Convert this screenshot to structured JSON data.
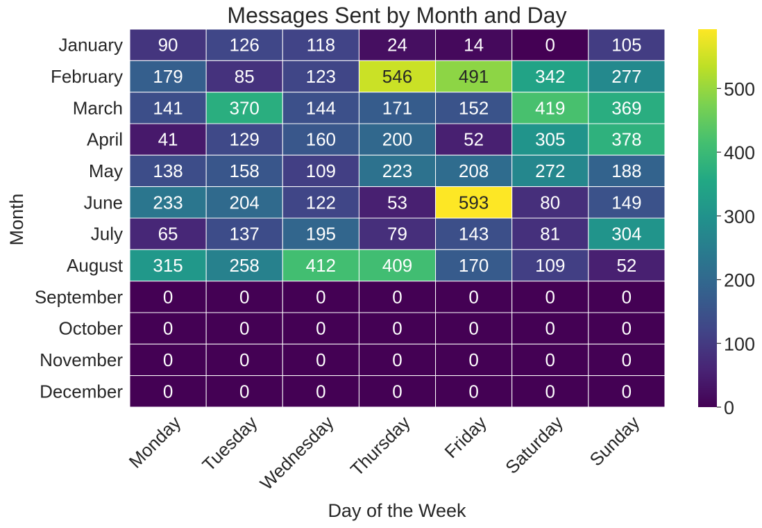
{
  "chart_data": {
    "type": "heatmap",
    "title": "Messages Sent by Month and Day",
    "xlabel": "Day of the Week",
    "ylabel": "Month",
    "x": [
      "Monday",
      "Tuesday",
      "Wednesday",
      "Thursday",
      "Friday",
      "Saturday",
      "Sunday"
    ],
    "y": [
      "January",
      "February",
      "March",
      "April",
      "May",
      "June",
      "July",
      "August",
      "September",
      "October",
      "November",
      "December"
    ],
    "values": [
      [
        90,
        126,
        118,
        24,
        14,
        0,
        105
      ],
      [
        179,
        85,
        123,
        546,
        491,
        342,
        277
      ],
      [
        141,
        370,
        144,
        171,
        152,
        419,
        369
      ],
      [
        41,
        129,
        160,
        200,
        52,
        305,
        378
      ],
      [
        138,
        158,
        109,
        223,
        208,
        272,
        188
      ],
      [
        233,
        204,
        122,
        53,
        593,
        80,
        149
      ],
      [
        65,
        137,
        195,
        79,
        143,
        81,
        304
      ],
      [
        315,
        258,
        412,
        409,
        170,
        109,
        52
      ],
      [
        0,
        0,
        0,
        0,
        0,
        0,
        0
      ],
      [
        0,
        0,
        0,
        0,
        0,
        0,
        0
      ],
      [
        0,
        0,
        0,
        0,
        0,
        0,
        0
      ],
      [
        0,
        0,
        0,
        0,
        0,
        0,
        0
      ]
    ],
    "colormap": "viridis",
    "vmin": 0,
    "vmax": 593,
    "colorbar_ticks": [
      0,
      100,
      200,
      300,
      400,
      500
    ],
    "annotated": true,
    "cell_border_color": "#ffffff"
  }
}
